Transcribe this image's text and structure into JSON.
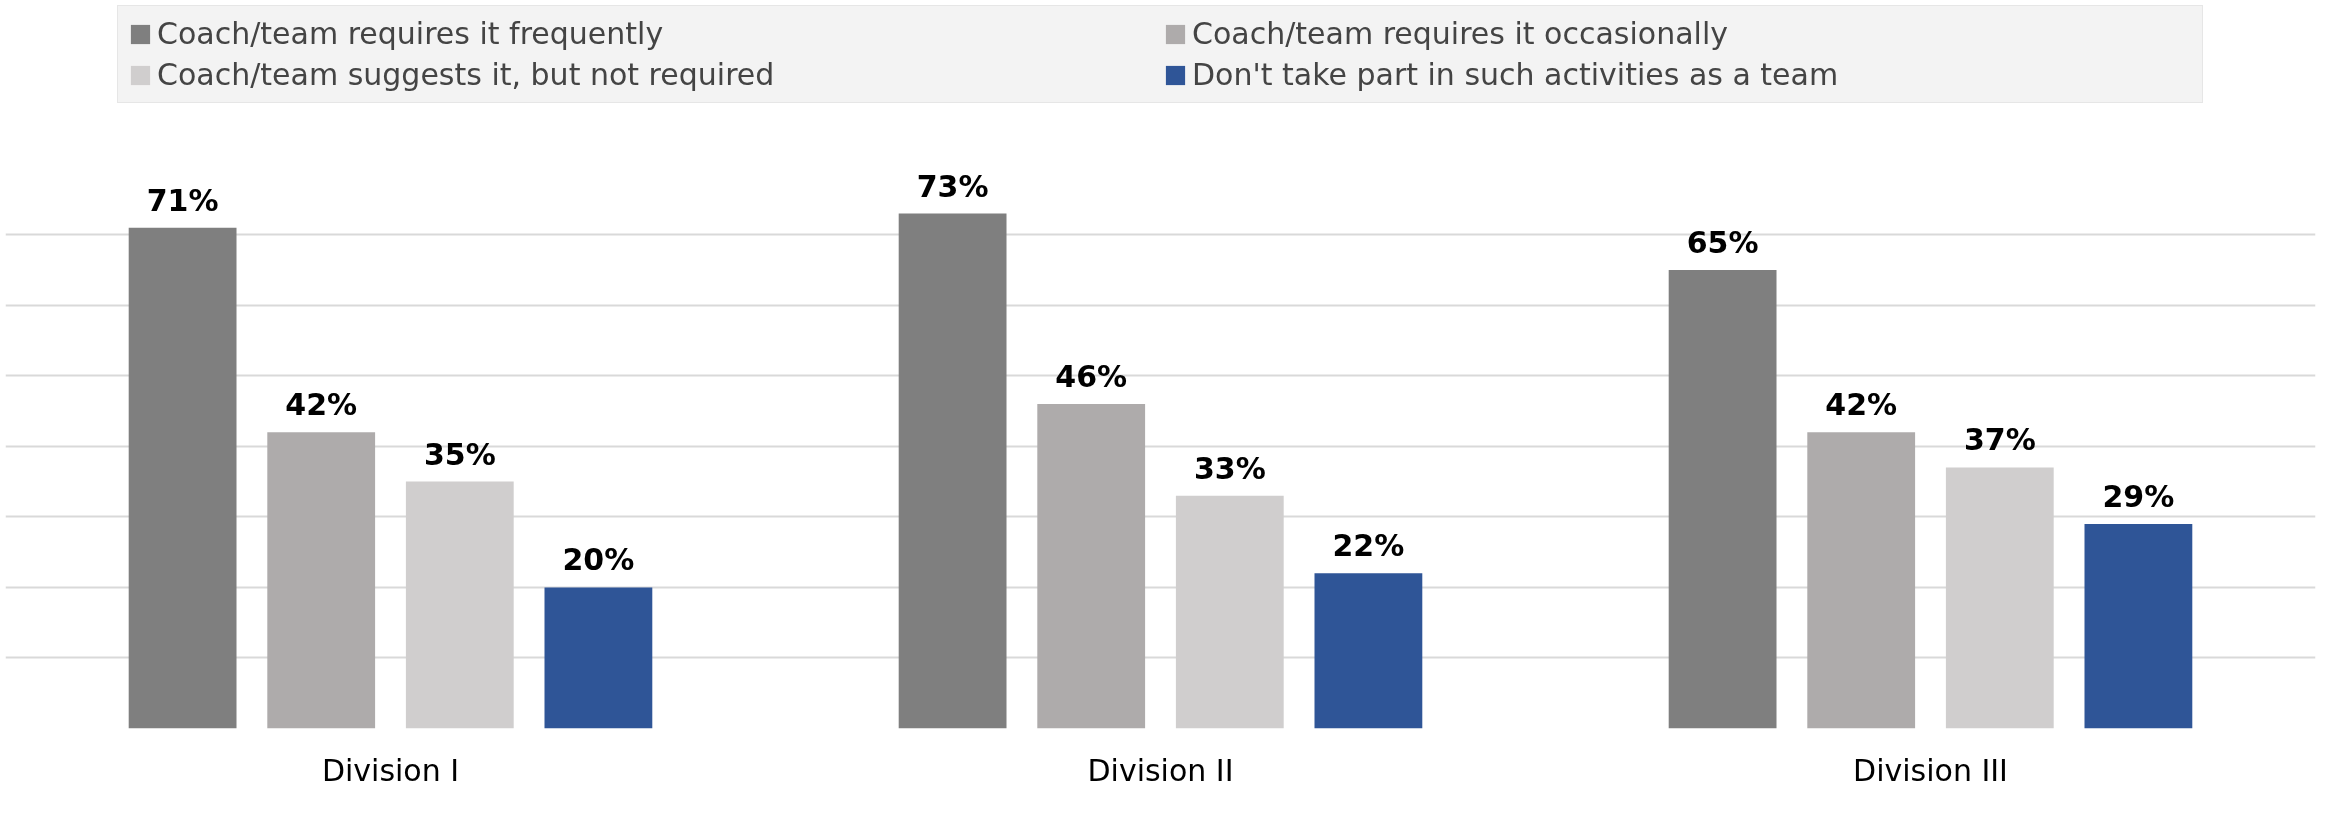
{
  "chart_data": {
    "type": "bar",
    "categories": [
      "Division I",
      "Division II",
      "Division III"
    ],
    "series": [
      {
        "name": "Coach/team requires it frequently",
        "color": "#7f7f7f",
        "values": [
          71,
          73,
          65
        ],
        "value_labels": [
          "71%",
          "73%",
          "65%"
        ]
      },
      {
        "name": "Coach/team requires it occasionally",
        "color": "#aeabab",
        "values": [
          42,
          46,
          42
        ],
        "value_labels": [
          "42%",
          "46%",
          "42%"
        ]
      },
      {
        "name": "Coach/team suggests it, but not required",
        "color": "#d0cece",
        "values": [
          35,
          33,
          37
        ],
        "value_labels": [
          "35%",
          "33%",
          "37%"
        ]
      },
      {
        "name": "Don't take part in such activities as a team",
        "color": "#2f5597",
        "values": [
          20,
          22,
          29
        ],
        "value_labels": [
          "20%",
          "22%",
          "29%"
        ]
      }
    ],
    "grid": "y",
    "legend": "top",
    "tick_labels": "x"
  }
}
